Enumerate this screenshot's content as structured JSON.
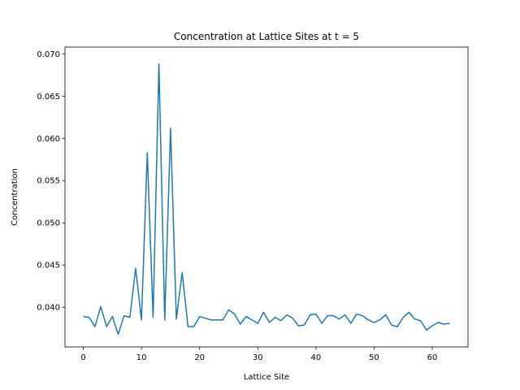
{
  "chart_data": {
    "type": "line",
    "title": "Concentration at Lattice Sites at t = 5",
    "xlabel": "Lattice Site",
    "ylabel": "Concentration",
    "xlim": [
      -3.15,
      66.15
    ],
    "ylim": [
      0.0353,
      0.0708
    ],
    "xticks": [
      0,
      10,
      20,
      30,
      40,
      50,
      60
    ],
    "xtick_labels": [
      "0",
      "10",
      "20",
      "30",
      "40",
      "50",
      "60"
    ],
    "yticks": [
      0.04,
      0.045,
      0.05,
      0.055,
      0.06,
      0.065,
      0.07
    ],
    "ytick_labels": [
      "0.040",
      "0.045",
      "0.050",
      "0.055",
      "0.060",
      "0.065",
      "0.070"
    ],
    "grid": false,
    "line_color": "#1f77b4",
    "series": [
      {
        "x": [
          0,
          1,
          2,
          3,
          4,
          5,
          6,
          7,
          8,
          9,
          10,
          11,
          12,
          13,
          14,
          15,
          16,
          17,
          18,
          19,
          20,
          21,
          22,
          23,
          24,
          25,
          26,
          27,
          28,
          29,
          30,
          31,
          32,
          33,
          34,
          35,
          36,
          37,
          38,
          39,
          40,
          41,
          42,
          43,
          44,
          45,
          46,
          47,
          48,
          49,
          50,
          51,
          52,
          53,
          54,
          55,
          56,
          57,
          58,
          59,
          60,
          61,
          62,
          63
        ],
        "values": [
          0.0389,
          0.0388,
          0.0377,
          0.0401,
          0.0377,
          0.0389,
          0.0368,
          0.039,
          0.0388,
          0.0446,
          0.0385,
          0.0583,
          0.0388,
          0.0688,
          0.0385,
          0.0612,
          0.0386,
          0.0441,
          0.0377,
          0.0377,
          0.0389,
          0.0387,
          0.0385,
          0.0385,
          0.0385,
          0.0397,
          0.0392,
          0.038,
          0.0389,
          0.0385,
          0.0381,
          0.0394,
          0.0382,
          0.0388,
          0.0384,
          0.0391,
          0.0387,
          0.0378,
          0.0379,
          0.0391,
          0.0392,
          0.0381,
          0.039,
          0.039,
          0.0386,
          0.0391,
          0.0381,
          0.0392,
          0.039,
          0.0385,
          0.0382,
          0.0385,
          0.0391,
          0.0379,
          0.0377,
          0.0388,
          0.0394,
          0.0386,
          0.0384,
          0.0373,
          0.0378,
          0.0382,
          0.038,
          0.0381
        ]
      }
    ]
  }
}
